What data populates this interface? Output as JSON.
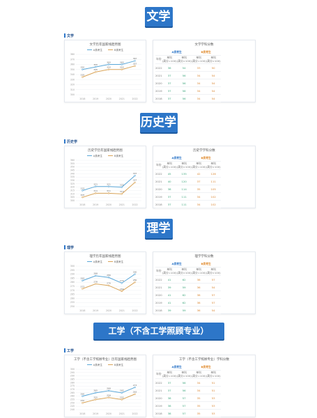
{
  "sections": [
    {
      "banner": "文学",
      "label": "文学",
      "chart_title": "文学历年国家线趋势图",
      "table_title": "文学学科分数",
      "cols": [
        "年份",
        "单科\n(满分=100)",
        "单科\n(满分>100)",
        "单科\n(满分=100)",
        "单科\n(满分>100)"
      ],
      "rows": [
        [
          "2022",
          "36",
          "54",
          "33",
          "50"
        ],
        [
          "2021",
          "37",
          "56",
          "34",
          "54"
        ],
        [
          "2020",
          "37",
          "56",
          "34",
          "54"
        ],
        [
          "2019",
          "37",
          "56",
          "34",
          "54"
        ],
        [
          "2018",
          "37",
          "56",
          "34",
          "54"
        ]
      ]
    },
    {
      "banner": "历史学",
      "label": "历史学",
      "chart_title": "历史学历年国家线趋势图",
      "table_title": "历史学学科分数",
      "cols": [
        "年份",
        "单科\n(满分=100)",
        "单科\n(满分>100)",
        "单科\n(满分=100)",
        "单科\n(满分>100)"
      ],
      "rows": [
        [
          "2022",
          "45",
          "135",
          "42",
          "126"
        ],
        [
          "2021",
          "40",
          "120",
          "37",
          "111"
        ],
        [
          "2020",
          "38",
          "114",
          "35",
          "105"
        ],
        [
          "2019",
          "37",
          "111",
          "34",
          "102"
        ],
        [
          "2018",
          "37",
          "111",
          "34",
          "102"
        ]
      ]
    },
    {
      "banner": "理学",
      "label": "理学",
      "chart_title": "理学历年国家线趋势图",
      "table_title": "理学学科分数",
      "cols": [
        "年份",
        "单科\n(满分=100)",
        "单科\n(满分>100)",
        "单科\n(满分=100)",
        "单科\n(满分>100)"
      ],
      "rows": [
        [
          "2022",
          "41",
          "62",
          "38",
          "57"
        ],
        [
          "2021",
          "39",
          "59",
          "36",
          "54"
        ],
        [
          "2020",
          "41",
          "62",
          "38",
          "57"
        ],
        [
          "2019",
          "41",
          "62",
          "38",
          "57"
        ],
        [
          "2018",
          "39",
          "59",
          "36",
          "54"
        ]
      ]
    },
    {
      "banner": "工学（不含工学照顾专业）",
      "label": "工学",
      "chart_title": "工学（不含工学照顾专业）历年国家线趋势图",
      "table_title": "工学（不含工学照顾专业）学科分数",
      "cols": [
        "年份",
        "单科\n(满分=100)",
        "单科\n(满分>100)",
        "单科\n(满分=100)",
        "单科\n(满分>100)"
      ],
      "rows": [
        [
          "2022",
          "37",
          "56",
          "34",
          "51"
        ],
        [
          "2021",
          "37",
          "56",
          "34",
          "51"
        ],
        [
          "2020",
          "38",
          "57",
          "35",
          "53"
        ],
        [
          "2019",
          "38",
          "57",
          "35",
          "53"
        ],
        [
          "2018",
          "38",
          "57",
          "35",
          "53"
        ]
      ]
    }
  ],
  "table_group_a": "A类考生",
  "table_group_b": "B类考生",
  "colors": {
    "a": "#2d76c8",
    "b": "#e08a2c",
    "line_a": "#5aa7d8",
    "line_b": "#d9a458"
  },
  "chart_data": [
    {
      "type": "line",
      "categories": [
        "2018",
        "2019",
        "2020",
        "2021",
        "2022"
      ],
      "ylim": [
        300,
        380
      ],
      "yticks": [
        300,
        310,
        320,
        330,
        340,
        350,
        360,
        370,
        380
      ],
      "series": [
        {
          "name": "A类考生",
          "values": [
            350,
            355,
            360,
            360,
            367
          ]
        },
        {
          "name": "B类考生",
          "values": [
            335,
            345,
            350,
            350,
            357
          ]
        }
      ],
      "legend": "top"
    },
    {
      "type": "line",
      "categories": [
        "2018",
        "2019",
        "2020",
        "2021",
        "2022"
      ],
      "ylim": [
        300,
        360
      ],
      "yticks": [
        300,
        305,
        310,
        315,
        320,
        325,
        330,
        335,
        340,
        345,
        350,
        355,
        360
      ],
      "series": [
        {
          "name": "A类考生",
          "values": [
            315,
            321,
            321,
            320,
            337
          ]
        },
        {
          "name": "B类考生",
          "values": [
            305,
            311,
            311,
            310,
            327
          ]
        }
      ],
      "legend": "top"
    },
    {
      "type": "line",
      "categories": [
        "2018",
        "2019",
        "2020",
        "2021",
        "2022"
      ],
      "ylim": [
        250,
        300
      ],
      "yticks": [
        250,
        255,
        260,
        265,
        270,
        275,
        280,
        285,
        290,
        295,
        300
      ],
      "series": [
        {
          "name": "A类考生",
          "values": [
            282,
            288,
            286,
            279,
            290
          ]
        },
        {
          "name": "B类考生",
          "values": [
            272,
            278,
            276,
            269,
            280
          ]
        }
      ],
      "legend": "top"
    },
    {
      "type": "line",
      "categories": [
        "2018",
        "2019",
        "2020",
        "2021",
        "2022"
      ],
      "ylim": [
        240,
        300
      ],
      "yticks": [
        240,
        245,
        250,
        255,
        260,
        265,
        270,
        275,
        280,
        285,
        290,
        295,
        300
      ],
      "series": [
        {
          "name": "A类考生",
          "values": [
            260,
            265,
            268,
            265,
            273
          ]
        },
        {
          "name": "B类考生",
          "values": [
            250,
            255,
            258,
            255,
            263
          ]
        }
      ],
      "legend": "top"
    }
  ]
}
